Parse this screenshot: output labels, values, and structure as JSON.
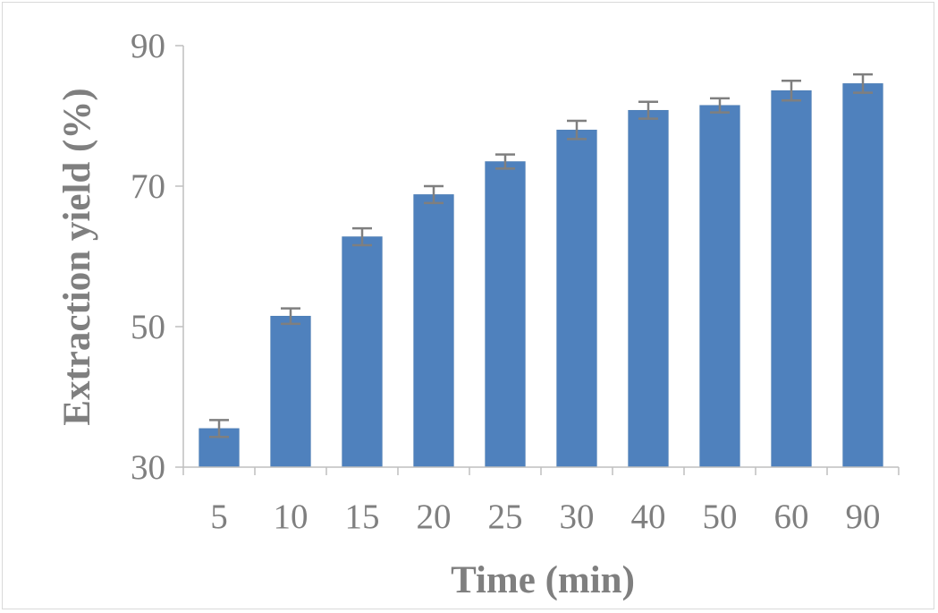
{
  "chart_data": {
    "type": "bar",
    "title": "",
    "xlabel": "Time (min)",
    "ylabel": "Extraction yield (%)",
    "categories": [
      "5",
      "10",
      "15",
      "20",
      "25",
      "30",
      "40",
      "50",
      "60",
      "90"
    ],
    "values": [
      35.5,
      51.5,
      62.8,
      68.8,
      73.5,
      78.0,
      80.8,
      81.5,
      83.6,
      84.6
    ],
    "error": [
      1.2,
      1.1,
      1.2,
      1.2,
      1.0,
      1.3,
      1.2,
      1.0,
      1.4,
      1.3
    ],
    "ylim": [
      30,
      90
    ],
    "yticks": [
      "30",
      "50",
      "70",
      "90"
    ],
    "grid": false,
    "legend": "none",
    "colors": {
      "bar": "#4f81bd",
      "bar_edge": "#4a7ab0",
      "error_bar": "#7f7f7f",
      "axis": "#bfbfbf",
      "text": "#7f7f7f"
    }
  }
}
